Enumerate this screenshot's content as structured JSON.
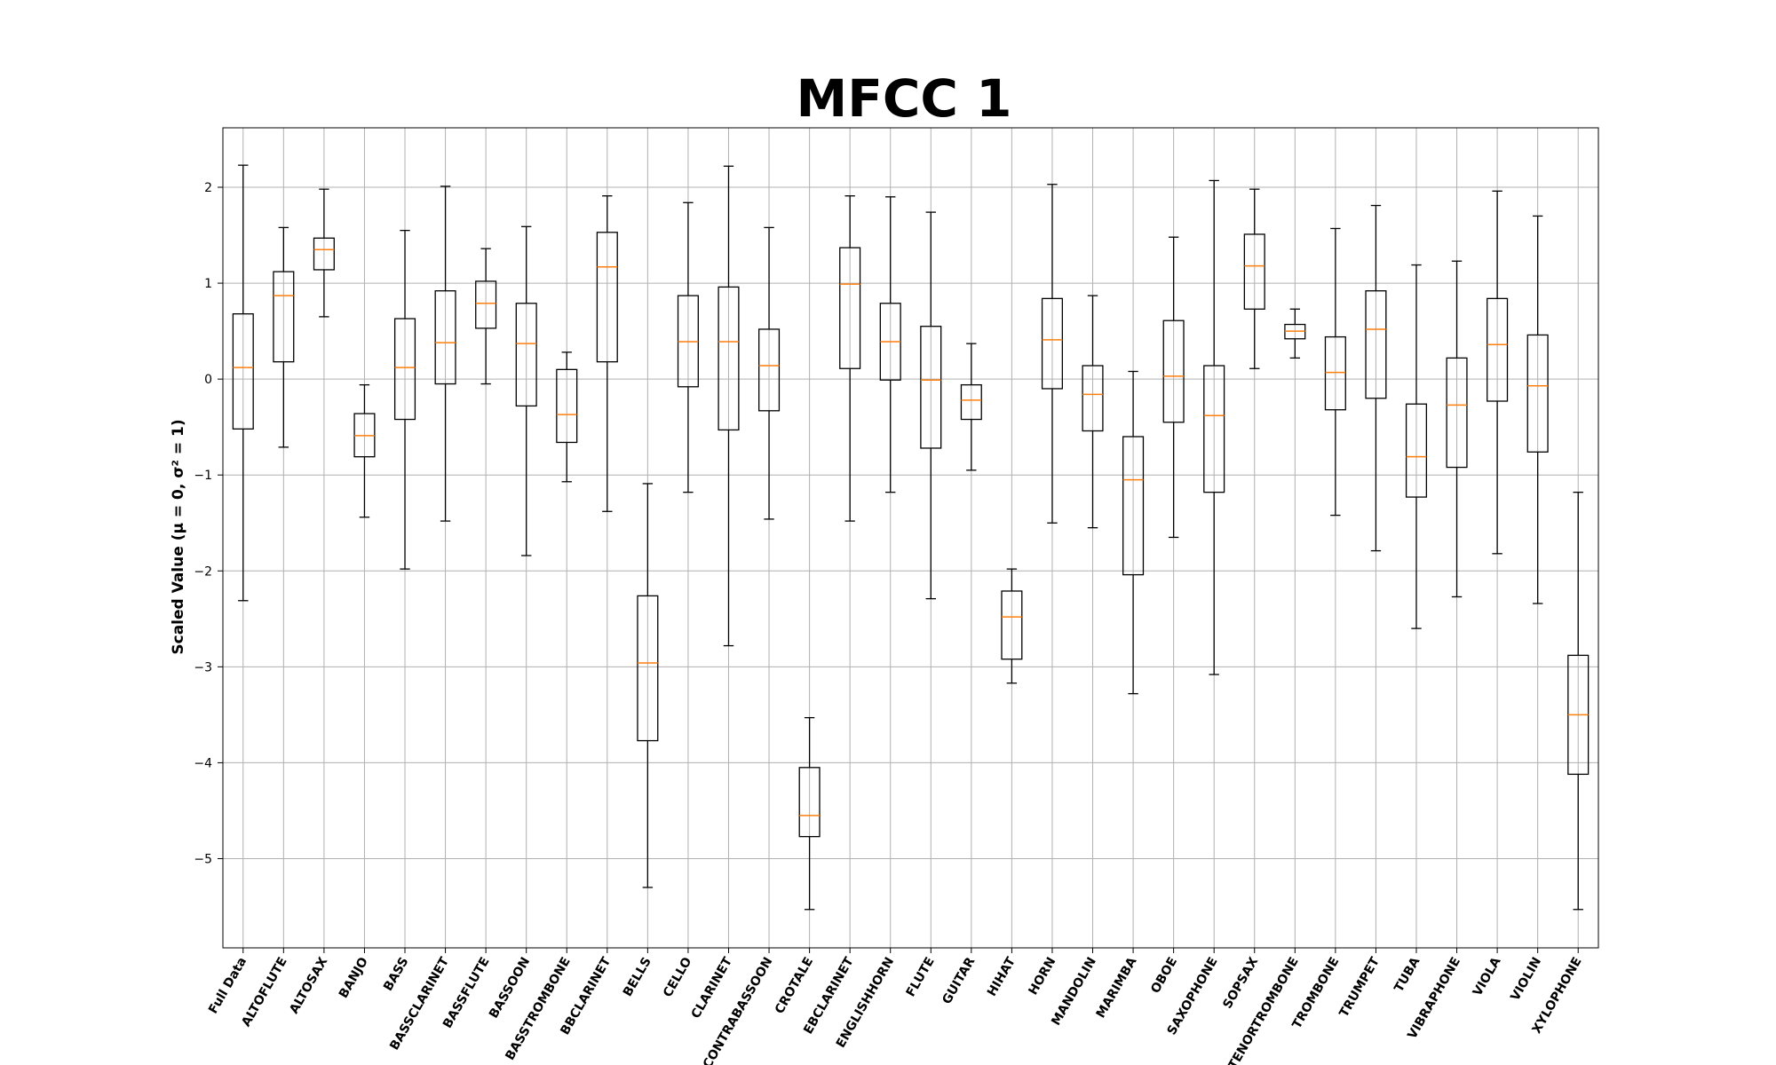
{
  "chart_data": {
    "type": "box",
    "title": "MFCC 1",
    "ylabel": "Scaled Value (μ = 0, σ² = 1)",
    "xlabel": "",
    "ylim": [
      -5.93,
      2.62
    ],
    "yticks": [
      -5,
      -4,
      -3,
      -2,
      -1,
      0,
      1,
      2
    ],
    "grid": true,
    "colors": {
      "box": "#000000",
      "median": "#ff7f0e",
      "grid": "#b0b0b0"
    },
    "categories": [
      "Full Data",
      "ALTOFLUTE",
      "ALTOSAX",
      "BANJO",
      "BASS",
      "BASSCLARINET",
      "BASSFLUTE",
      "BASSOON",
      "BASSTROMBONE",
      "BBCLARINET",
      "BELLS",
      "CELLO",
      "CLARINET",
      "CONTRABASSOON",
      "CROTALE",
      "EBCLARINET",
      "ENGLISHHORN",
      "FLUTE",
      "GUITAR",
      "HIHAT",
      "HORN",
      "MANDOLIN",
      "MARIMBA",
      "OBOE",
      "SAXOPHONE",
      "SOPSAX",
      "TENORTROMBONE",
      "TROMBONE",
      "TRUMPET",
      "TUBA",
      "VIBRAPHONE",
      "VIOLA",
      "VIOLIN",
      "XYLOPHONE"
    ],
    "boxes": [
      {
        "whislo": -2.31,
        "q1": -0.52,
        "med": 0.12,
        "q3": 0.68,
        "whishi": 2.23
      },
      {
        "whislo": -0.71,
        "q1": 0.18,
        "med": 0.87,
        "q3": 1.12,
        "whishi": 1.58
      },
      {
        "whislo": 0.65,
        "q1": 1.14,
        "med": 1.35,
        "q3": 1.47,
        "whishi": 1.98
      },
      {
        "whislo": -1.44,
        "q1": -0.81,
        "med": -0.59,
        "q3": -0.36,
        "whishi": -0.06
      },
      {
        "whislo": -1.98,
        "q1": -0.42,
        "med": 0.12,
        "q3": 0.63,
        "whishi": 1.55
      },
      {
        "whislo": -1.48,
        "q1": -0.05,
        "med": 0.38,
        "q3": 0.92,
        "whishi": 2.01
      },
      {
        "whislo": -0.05,
        "q1": 0.53,
        "med": 0.79,
        "q3": 1.02,
        "whishi": 1.36
      },
      {
        "whislo": -1.84,
        "q1": -0.28,
        "med": 0.37,
        "q3": 0.79,
        "whishi": 1.59
      },
      {
        "whislo": -1.07,
        "q1": -0.66,
        "med": -0.37,
        "q3": 0.1,
        "whishi": 0.28
      },
      {
        "whislo": -1.38,
        "q1": 0.18,
        "med": 1.17,
        "q3": 1.53,
        "whishi": 1.91
      },
      {
        "whislo": -5.3,
        "q1": -3.77,
        "med": -2.96,
        "q3": -2.26,
        "whishi": -1.09
      },
      {
        "whislo": -1.18,
        "q1": -0.08,
        "med": 0.39,
        "q3": 0.87,
        "whishi": 1.84
      },
      {
        "whislo": -2.78,
        "q1": -0.53,
        "med": 0.39,
        "q3": 0.96,
        "whishi": 2.22
      },
      {
        "whislo": -1.46,
        "q1": -0.33,
        "med": 0.14,
        "q3": 0.52,
        "whishi": 1.58
      },
      {
        "whislo": -5.53,
        "q1": -4.77,
        "med": -4.55,
        "q3": -4.05,
        "whishi": -3.53
      },
      {
        "whislo": -1.48,
        "q1": 0.11,
        "med": 0.99,
        "q3": 1.37,
        "whishi": 1.91
      },
      {
        "whislo": -1.18,
        "q1": -0.01,
        "med": 0.39,
        "q3": 0.79,
        "whishi": 1.9
      },
      {
        "whislo": -2.29,
        "q1": -0.72,
        "med": -0.01,
        "q3": 0.55,
        "whishi": 1.74
      },
      {
        "whislo": -0.95,
        "q1": -0.42,
        "med": -0.22,
        "q3": -0.06,
        "whishi": 0.37
      },
      {
        "whislo": -3.17,
        "q1": -2.92,
        "med": -2.48,
        "q3": -2.21,
        "whishi": -1.98
      },
      {
        "whislo": -1.5,
        "q1": -0.1,
        "med": 0.41,
        "q3": 0.84,
        "whishi": 2.03
      },
      {
        "whislo": -1.55,
        "q1": -0.54,
        "med": -0.16,
        "q3": 0.14,
        "whishi": 0.87
      },
      {
        "whislo": -3.28,
        "q1": -2.04,
        "med": -1.05,
        "q3": -0.6,
        "whishi": 0.08
      },
      {
        "whislo": -1.65,
        "q1": -0.45,
        "med": 0.03,
        "q3": 0.61,
        "whishi": 1.48
      },
      {
        "whislo": -3.08,
        "q1": -1.18,
        "med": -0.38,
        "q3": 0.14,
        "whishi": 2.07
      },
      {
        "whislo": 0.11,
        "q1": 0.73,
        "med": 1.18,
        "q3": 1.51,
        "whishi": 1.98
      },
      {
        "whislo": 0.22,
        "q1": 0.42,
        "med": 0.5,
        "q3": 0.57,
        "whishi": 0.73
      },
      {
        "whislo": -1.42,
        "q1": -0.32,
        "med": 0.07,
        "q3": 0.44,
        "whishi": 1.57
      },
      {
        "whislo": -1.79,
        "q1": -0.2,
        "med": 0.52,
        "q3": 0.92,
        "whishi": 1.81
      },
      {
        "whislo": -2.6,
        "q1": -1.23,
        "med": -0.81,
        "q3": -0.26,
        "whishi": 1.19
      },
      {
        "whislo": -2.27,
        "q1": -0.92,
        "med": -0.27,
        "q3": 0.22,
        "whishi": 1.23
      },
      {
        "whislo": -1.82,
        "q1": -0.23,
        "med": 0.36,
        "q3": 0.84,
        "whishi": 1.96
      },
      {
        "whislo": -2.34,
        "q1": -0.76,
        "med": -0.07,
        "q3": 0.46,
        "whishi": 1.7
      },
      {
        "whislo": -5.53,
        "q1": -4.12,
        "med": -3.5,
        "q3": -2.88,
        "whishi": -1.18
      }
    ]
  }
}
